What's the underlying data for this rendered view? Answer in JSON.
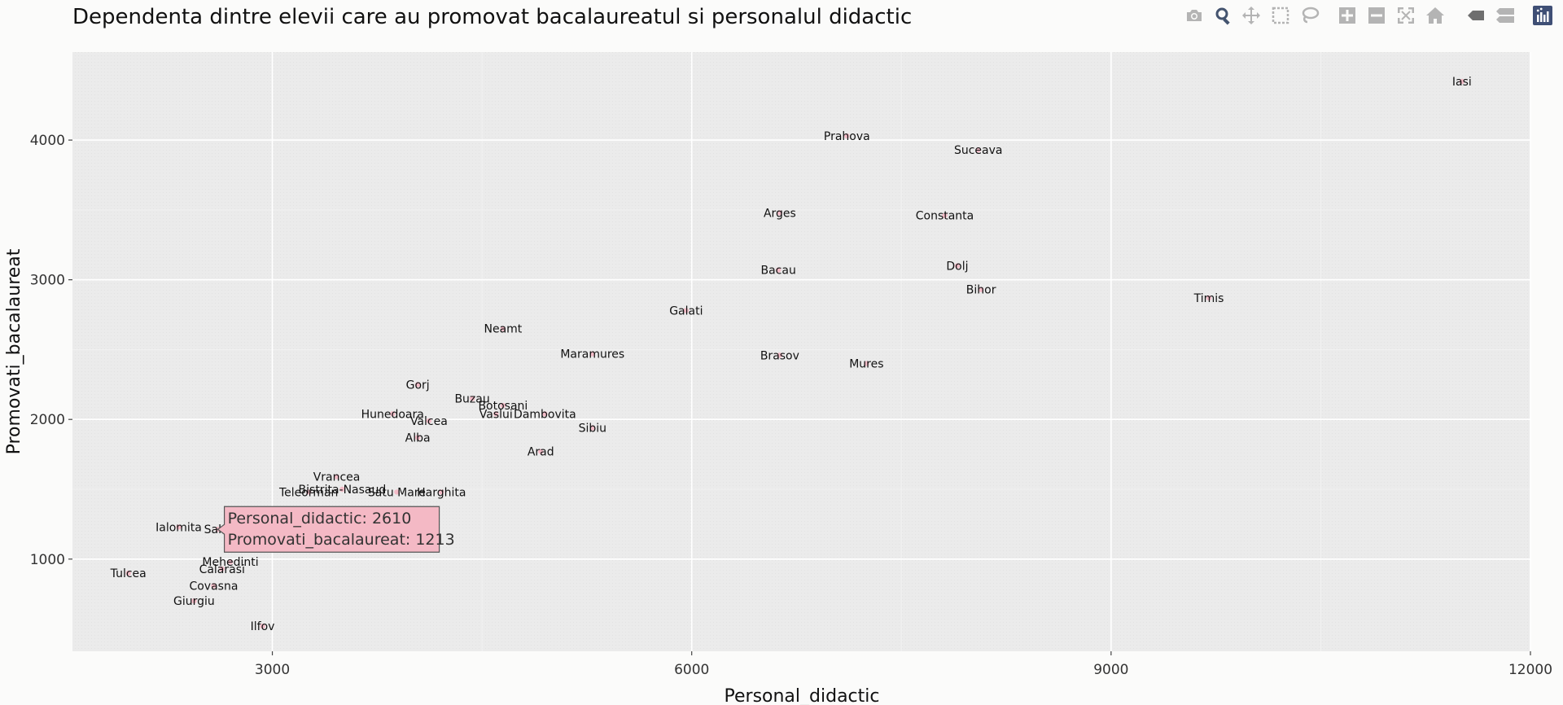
{
  "chart_data": {
    "type": "scatter",
    "title": "Dependenta dintre elevii care au promovat bacalaureatul si personalul didactic",
    "xlabel": "Personal_didactic",
    "ylabel": "Promovati_bacalaureat",
    "xlim": [
      1570,
      12000
    ],
    "ylim": [
      340,
      4630
    ],
    "xticks": [
      3000,
      6000,
      9000,
      12000
    ],
    "yticks": [
      1000,
      2000,
      3000,
      4000
    ],
    "grid": true,
    "point_color": "#f5b7c4",
    "plot_bg": "#ebebeb",
    "points": [
      {
        "label": "Iasi",
        "x": 11510,
        "y": 4420
      },
      {
        "label": "Prahova",
        "x": 7110,
        "y": 4030
      },
      {
        "label": "Suceava",
        "x": 8050,
        "y": 3930
      },
      {
        "label": "Arges",
        "x": 6630,
        "y": 3480
      },
      {
        "label": "Constanta",
        "x": 7810,
        "y": 3460
      },
      {
        "label": "Bacau",
        "x": 6620,
        "y": 3070
      },
      {
        "label": "Dolj",
        "x": 7900,
        "y": 3100
      },
      {
        "label": "Bihor",
        "x": 8070,
        "y": 2930
      },
      {
        "label": "Timis",
        "x": 9700,
        "y": 2870
      },
      {
        "label": "Galati",
        "x": 5960,
        "y": 2780
      },
      {
        "label": "Neamt",
        "x": 4650,
        "y": 2650
      },
      {
        "label": "Maramures",
        "x": 5290,
        "y": 2470
      },
      {
        "label": "Brasov",
        "x": 6630,
        "y": 2460
      },
      {
        "label": "Mures",
        "x": 7250,
        "y": 2400
      },
      {
        "label": "Gorj",
        "x": 4040,
        "y": 2250
      },
      {
        "label": "Buzau",
        "x": 4430,
        "y": 2150
      },
      {
        "label": "Botosani",
        "x": 4650,
        "y": 2100
      },
      {
        "label": "Hunedoara",
        "x": 3860,
        "y": 2040
      },
      {
        "label": "Valcea",
        "x": 4120,
        "y": 1990
      },
      {
        "label": "Vaslui",
        "x": 4600,
        "y": 2040
      },
      {
        "label": "Dambovita",
        "x": 4950,
        "y": 2040
      },
      {
        "label": "Sibiu",
        "x": 5290,
        "y": 1940
      },
      {
        "label": "Alba",
        "x": 4040,
        "y": 1870
      },
      {
        "label": "Arad",
        "x": 4920,
        "y": 1770
      },
      {
        "label": "Vrancea",
        "x": 3460,
        "y": 1590
      },
      {
        "label": "Bistrita-Nasaud",
        "x": 3500,
        "y": 1500
      },
      {
        "label": "Teleorman",
        "x": 3260,
        "y": 1480
      },
      {
        "label": "Satu Mare",
        "x": 3890,
        "y": 1480
      },
      {
        "label": "Harghita",
        "x": 4210,
        "y": 1480
      },
      {
        "label": "Ialomita",
        "x": 2330,
        "y": 1230
      },
      {
        "label": "Salaj",
        "x": 2610,
        "y": 1213
      },
      {
        "label": "Mehedinti",
        "x": 2700,
        "y": 980
      },
      {
        "label": "Calarasi",
        "x": 2640,
        "y": 930
      },
      {
        "label": "Tulcea",
        "x": 1970,
        "y": 900
      },
      {
        "label": "Covasna",
        "x": 2580,
        "y": 810
      },
      {
        "label": "Giurgiu",
        "x": 2440,
        "y": 700
      },
      {
        "label": "Ilfov",
        "x": 2930,
        "y": 520
      }
    ],
    "hover": {
      "label": "Salaj",
      "x_line": "Personal_didactic:  2610",
      "y_line": "Promovati_bacalaureat: 1213"
    }
  },
  "modebar": {
    "buttons": [
      {
        "icon": "camera-icon",
        "title": "Download plot as a png"
      },
      {
        "icon": "zoom-icon",
        "title": "Zoom"
      },
      {
        "icon": "pan-icon",
        "title": "Pan"
      },
      {
        "icon": "box-select-icon",
        "title": "Box Select"
      },
      {
        "icon": "lasso-select-icon",
        "title": "Lasso Select"
      },
      {
        "icon": "zoom-in-icon",
        "title": "Zoom in"
      },
      {
        "icon": "zoom-out-icon",
        "title": "Zoom out"
      },
      {
        "icon": "autoscale-icon",
        "title": "Autoscale"
      },
      {
        "icon": "reset-axes-icon",
        "title": "Reset axes"
      },
      {
        "icon": "show-closest-icon",
        "title": "Show closest data on hover"
      },
      {
        "icon": "compare-data-icon",
        "title": "Compare data on hover"
      },
      {
        "icon": "plotly-logo-icon",
        "title": "Produced with Plotly"
      }
    ]
  }
}
